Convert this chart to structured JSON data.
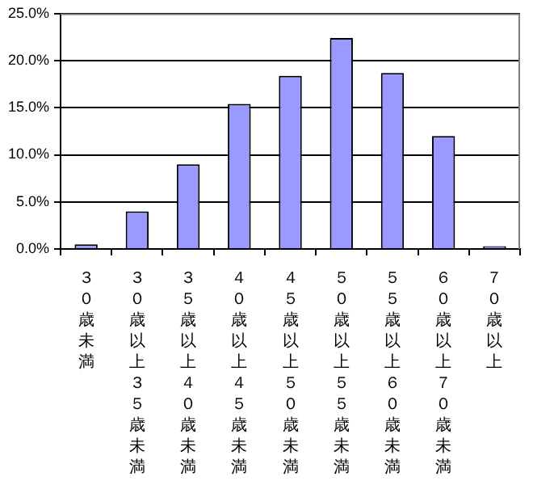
{
  "chart_data": {
    "type": "bar",
    "categories": [
      "３０歳未満",
      "３０歳以上３５歳未満",
      "３５歳以上４０歳未満",
      "４０歳以上４５歳未満",
      "４５歳以上５０歳未満",
      "５０歳以上５５歳未満",
      "５５歳以上６０歳未満",
      "６０歳以上７０歳未満",
      "７０歳以上"
    ],
    "values": [
      0.5,
      4.0,
      9.0,
      15.4,
      18.4,
      22.4,
      18.7,
      12.0,
      0.3
    ],
    "color": "#9999ff",
    "ylim": [
      0,
      25
    ],
    "yticks": [
      {
        "value": 0,
        "label": "0.0%"
      },
      {
        "value": 5,
        "label": "5.0%"
      },
      {
        "value": 10,
        "label": "10.0%"
      },
      {
        "value": 15,
        "label": "15.0%"
      },
      {
        "value": 20,
        "label": "20.0%"
      },
      {
        "value": 25,
        "label": "25.0%"
      }
    ],
    "grid": "y",
    "legend": false
  }
}
